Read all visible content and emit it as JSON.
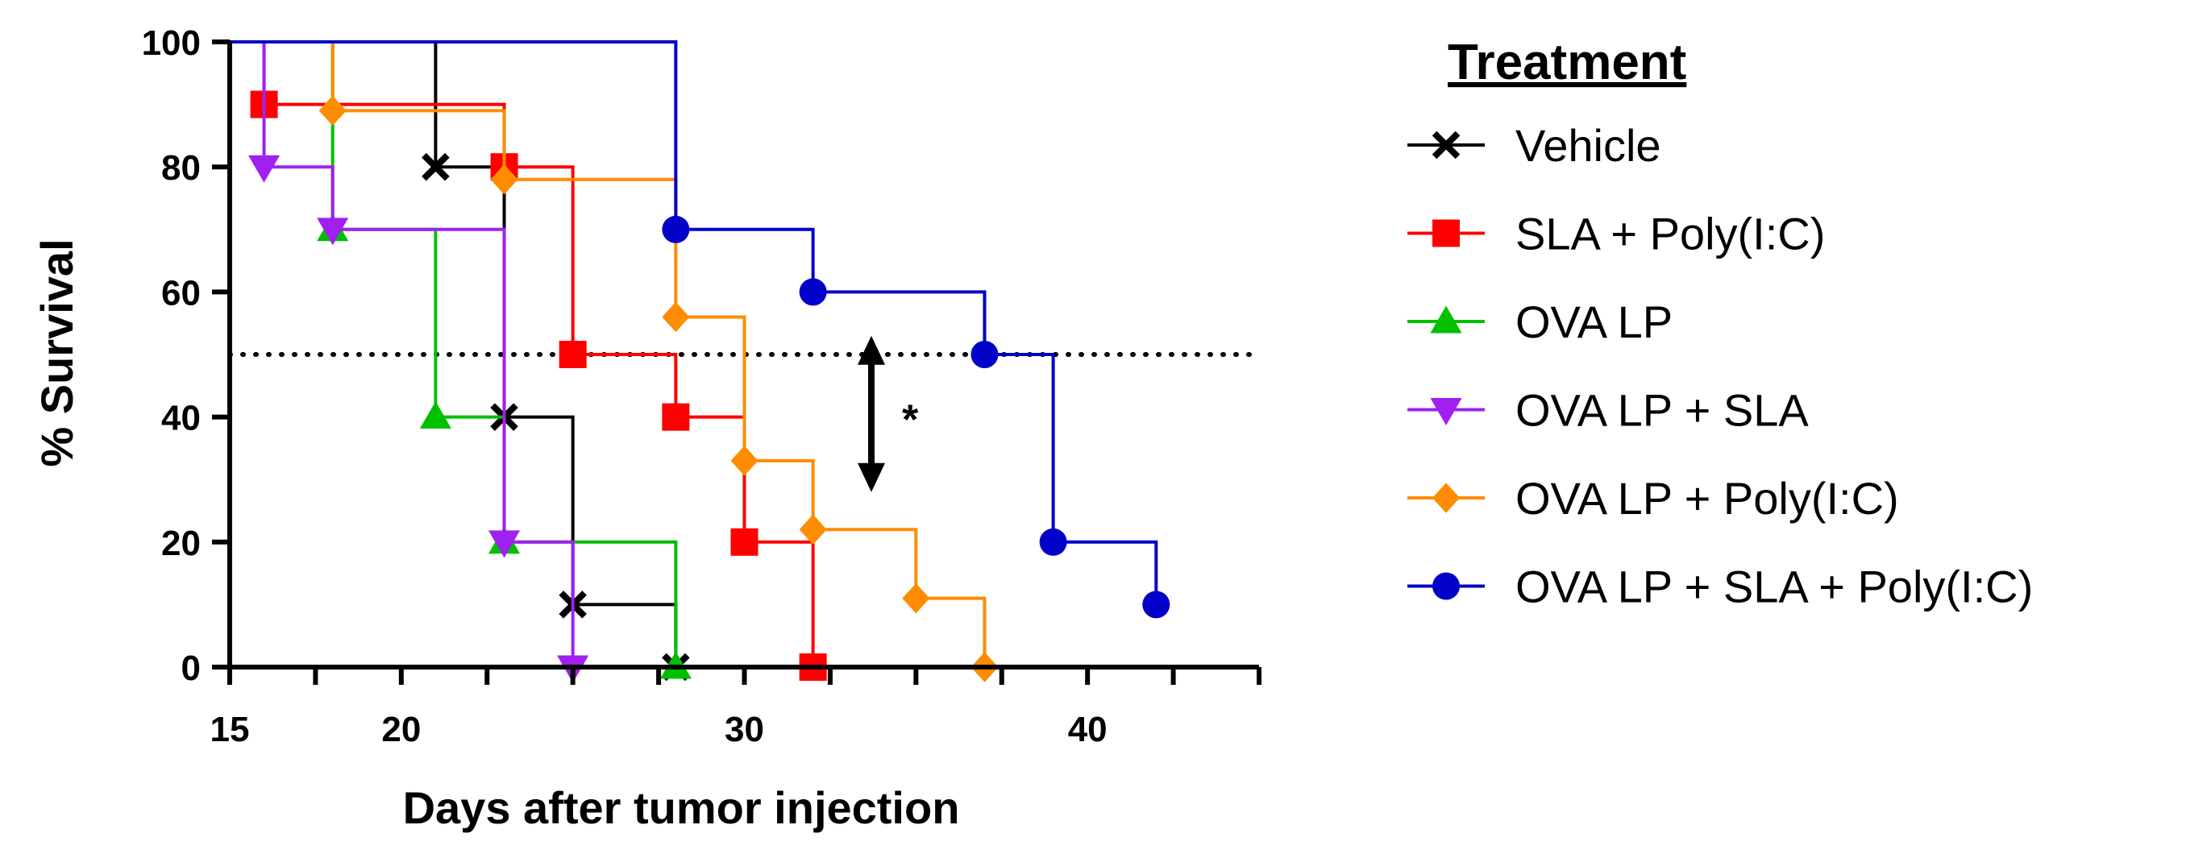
{
  "chart_data": {
    "type": "line",
    "style": "kaplan-meier",
    "xlabel": "Days after tumor injection",
    "ylabel": "% Survival",
    "xlim": [
      15,
      45
    ],
    "ylim": [
      0,
      100
    ],
    "x_tick_labels": [
      {
        "value": 15,
        "label": "15"
      },
      {
        "value": 20,
        "label": "20"
      },
      {
        "value": 30,
        "label": "30"
      },
      {
        "value": 40,
        "label": "40"
      }
    ],
    "x_minor_ticks": [
      15,
      17.5,
      20,
      22.5,
      25,
      27.5,
      30,
      32.5,
      35,
      37.5,
      40,
      42.5,
      45
    ],
    "y_ticks": [
      0,
      20,
      40,
      60,
      80,
      100
    ],
    "y_tick_labels": [
      "0",
      "20",
      "40",
      "60",
      "80",
      "100"
    ],
    "reference_line": {
      "y": 50,
      "style": "dotted",
      "x_range": [
        15,
        45
      ]
    },
    "legend": {
      "title": "Treatment",
      "position": "right"
    },
    "annotations": [
      {
        "type": "double-arrow",
        "x": 33.7,
        "y_from": 28,
        "y_to": 53,
        "text": "*"
      }
    ],
    "series": [
      {
        "name": "Vehicle",
        "color": "#000000",
        "marker": "x",
        "x": [
          15,
          21,
          23,
          25,
          28
        ],
        "y": [
          100,
          80,
          40,
          10,
          0
        ]
      },
      {
        "name": "SLA + Poly(I:C)",
        "color": "#ff0000",
        "marker": "square",
        "x": [
          15,
          16,
          23,
          25,
          28,
          30,
          32
        ],
        "y": [
          100,
          90,
          80,
          50,
          40,
          20,
          0
        ]
      },
      {
        "name": "OVA LP",
        "color": "#00c000",
        "marker": "triangle-up",
        "x": [
          15,
          18,
          21,
          23,
          28
        ],
        "y": [
          100,
          70,
          40,
          20,
          0
        ]
      },
      {
        "name": "OVA LP + SLA",
        "color": "#a020f0",
        "marker": "triangle-down",
        "x": [
          15,
          16,
          18,
          23,
          25
        ],
        "y": [
          100,
          80,
          70,
          20,
          0
        ]
      },
      {
        "name": "OVA LP + Poly(I:C)",
        "color": "#ff8c00",
        "marker": "diamond",
        "x": [
          15,
          18,
          23,
          28,
          30,
          32,
          35,
          37
        ],
        "y": [
          100,
          89,
          78,
          56,
          33,
          22,
          11,
          0
        ]
      },
      {
        "name": "OVA LP + SLA + Poly(I:C)",
        "color": "#0000c8",
        "marker": "circle",
        "x": [
          15,
          28,
          32,
          37,
          39,
          42
        ],
        "y": [
          100,
          70,
          60,
          50,
          20,
          10
        ]
      }
    ]
  }
}
